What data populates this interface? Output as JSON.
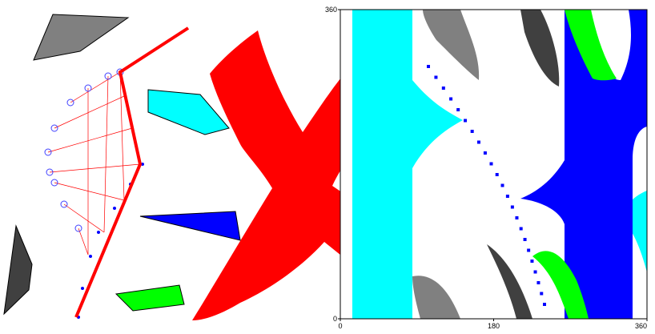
{
  "cspace_axes": {
    "x_ticks": [
      0,
      180,
      360
    ],
    "y_ticks": [
      0,
      360
    ],
    "xlim": [
      0,
      360
    ],
    "ylim": [
      0,
      360
    ]
  }
}
